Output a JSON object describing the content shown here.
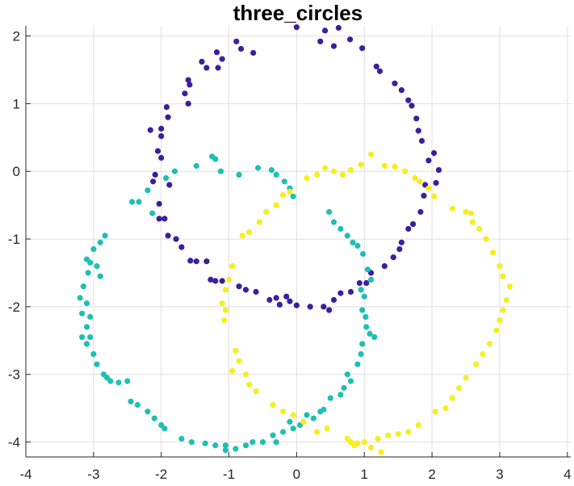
{
  "chart_data": {
    "type": "scatter",
    "title": "three_circles",
    "xlabel": "",
    "ylabel": "",
    "xlim": [
      -4,
      4.05
    ],
    "ylim": [
      -4.22,
      2.15
    ],
    "grid": true,
    "x_ticks": [
      -4,
      -3,
      -2,
      -1,
      0,
      1,
      2,
      3,
      4
    ],
    "y_ticks": [
      2,
      1,
      0,
      -1,
      -2,
      -3,
      -4
    ],
    "x_tick_labels": [
      "-4",
      "-3",
      "-2",
      "-1",
      "0",
      "1",
      "2",
      "3",
      "4"
    ],
    "y_tick_labels": [
      "2",
      "1",
      "0",
      "-1",
      "-2",
      "-3",
      "-4"
    ],
    "series": [
      {
        "color": "#3a1f9e",
        "circle": {
          "center": [
            0.1,
            0.05
          ],
          "radius": 2.0
        },
        "points": [
          [
            0.0,
            2.13
          ],
          [
            0.62,
            2.12
          ],
          [
            0.42,
            2.08
          ],
          [
            -0.89,
            1.92
          ],
          [
            -0.82,
            1.81
          ],
          [
            0.79,
            1.95
          ],
          [
            0.35,
            1.92
          ],
          [
            0.55,
            1.85
          ],
          [
            0.97,
            1.82
          ],
          [
            -0.64,
            1.75
          ],
          [
            -1.18,
            1.76
          ],
          [
            -1.1,
            1.66
          ],
          [
            -1.4,
            1.62
          ],
          [
            -1.33,
            1.53
          ],
          [
            -1.16,
            1.53
          ],
          [
            1.18,
            1.55
          ],
          [
            1.23,
            1.48
          ],
          [
            -1.6,
            1.35
          ],
          [
            -1.58,
            1.28
          ],
          [
            -1.65,
            1.15
          ],
          [
            -1.6,
            1.0
          ],
          [
            1.45,
            1.3
          ],
          [
            1.55,
            1.2
          ],
          [
            1.65,
            1.05
          ],
          [
            1.7,
            0.97
          ],
          [
            1.77,
            0.78
          ],
          [
            -1.92,
            0.95
          ],
          [
            -1.9,
            0.8
          ],
          [
            -2.0,
            0.63
          ],
          [
            -2.16,
            0.61
          ],
          [
            -2.0,
            0.52
          ],
          [
            1.8,
            0.6
          ],
          [
            1.85,
            0.45
          ],
          [
            -2.05,
            0.3
          ],
          [
            -2.0,
            0.2
          ],
          [
            2.03,
            0.27
          ],
          [
            1.95,
            0.16
          ],
          [
            2.1,
            0.02
          ],
          [
            -2.09,
            -0.05
          ],
          [
            -2.12,
            -0.15
          ],
          [
            -1.88,
            -0.2
          ],
          [
            2.06,
            -0.17
          ],
          [
            1.9,
            -0.2
          ],
          [
            1.88,
            -0.36
          ],
          [
            -2.03,
            -0.48
          ],
          [
            -2.03,
            -0.7
          ],
          [
            -1.95,
            -0.7
          ],
          [
            1.83,
            -0.6
          ],
          [
            1.72,
            -0.78
          ],
          [
            1.65,
            -0.85
          ],
          [
            -1.9,
            -0.95
          ],
          [
            -1.78,
            -1.0
          ],
          [
            -1.7,
            -1.12
          ],
          [
            1.55,
            -1.05
          ],
          [
            1.52,
            -1.15
          ],
          [
            1.43,
            -1.27
          ],
          [
            -1.57,
            -1.32
          ],
          [
            -1.48,
            -1.33
          ],
          [
            -1.33,
            -1.33
          ],
          [
            1.3,
            -1.4
          ],
          [
            1.1,
            -1.5
          ],
          [
            1.03,
            -1.65
          ],
          [
            -1.27,
            -1.6
          ],
          [
            -1.2,
            -1.62
          ],
          [
            -1.1,
            -1.62
          ],
          [
            0.8,
            -1.78
          ],
          [
            0.93,
            -1.65
          ],
          [
            -0.75,
            -1.75
          ],
          [
            -0.85,
            -1.7
          ],
          [
            0.65,
            -1.8
          ],
          [
            -0.6,
            -1.78
          ],
          [
            -0.4,
            -1.9
          ],
          [
            -0.3,
            -1.87
          ],
          [
            -0.15,
            -1.85
          ],
          [
            0.0,
            -1.98
          ],
          [
            0.2,
            -2.0
          ],
          [
            0.4,
            -2.0
          ],
          [
            0.55,
            -1.9
          ],
          [
            0.48,
            -2.05
          ],
          [
            -0.25,
            -1.97
          ],
          [
            -0.1,
            -1.92
          ]
        ]
      },
      {
        "color": "#1ebfb5",
        "circle": {
          "center": [
            -1.0,
            -2.05
          ],
          "radius": 2.05
        },
        "points": [
          [
            -1.25,
            0.22
          ],
          [
            -1.2,
            0.18
          ],
          [
            -1.12,
            0.0
          ],
          [
            -0.85,
            -0.05
          ],
          [
            -0.57,
            0.05
          ],
          [
            -0.37,
            0.02
          ],
          [
            -0.3,
            -0.05
          ],
          [
            -0.18,
            -0.15
          ],
          [
            -0.1,
            -0.25
          ],
          [
            -0.05,
            -0.37
          ],
          [
            -1.48,
            0.08
          ],
          [
            -1.8,
            0.0
          ],
          [
            -1.93,
            -0.1
          ],
          [
            -2.2,
            -0.28
          ],
          [
            -2.33,
            -0.45
          ],
          [
            -2.43,
            -0.45
          ],
          [
            -2.13,
            -0.62
          ],
          [
            0.48,
            -0.6
          ],
          [
            0.55,
            -0.75
          ],
          [
            0.65,
            -0.85
          ],
          [
            0.75,
            -0.95
          ],
          [
            0.83,
            -1.05
          ],
          [
            0.9,
            -1.1
          ],
          [
            0.98,
            -1.22
          ],
          [
            -2.83,
            -0.95
          ],
          [
            -2.9,
            -1.05
          ],
          [
            -3.0,
            -1.15
          ],
          [
            -3.1,
            -1.3
          ],
          [
            -3.05,
            -1.35
          ],
          [
            -2.95,
            -1.4
          ],
          [
            -3.08,
            -1.5
          ],
          [
            -2.9,
            -1.55
          ],
          [
            -3.15,
            -1.7
          ],
          [
            -3.2,
            -1.87
          ],
          [
            -3.1,
            -1.95
          ],
          [
            -3.17,
            -2.1
          ],
          [
            -3.05,
            -2.15
          ],
          [
            -3.1,
            -2.3
          ],
          [
            -3.17,
            -2.45
          ],
          [
            -3.05,
            -2.45
          ],
          [
            1.05,
            -1.45
          ],
          [
            1.1,
            -1.6
          ],
          [
            0.95,
            -1.75
          ],
          [
            1.0,
            -1.85
          ],
          [
            0.97,
            -2.05
          ],
          [
            1.02,
            -2.15
          ],
          [
            1.03,
            -2.3
          ],
          [
            1.08,
            -2.4
          ],
          [
            1.15,
            -2.45
          ],
          [
            0.97,
            -2.55
          ],
          [
            -3.1,
            -2.55
          ],
          [
            -3.0,
            -2.7
          ],
          [
            -2.95,
            -2.85
          ],
          [
            -2.85,
            -3.0
          ],
          [
            -2.8,
            -3.05
          ],
          [
            -2.75,
            -3.1
          ],
          [
            -2.63,
            -3.12
          ],
          [
            -2.5,
            -3.1
          ],
          [
            0.95,
            -2.7
          ],
          [
            0.9,
            -2.85
          ],
          [
            0.75,
            -3.0
          ],
          [
            0.8,
            -3.1
          ],
          [
            0.7,
            -3.2
          ],
          [
            0.65,
            -3.3
          ],
          [
            0.5,
            -3.35
          ],
          [
            0.4,
            -3.52
          ],
          [
            -2.45,
            -3.4
          ],
          [
            -2.35,
            -3.45
          ],
          [
            -2.2,
            -3.55
          ],
          [
            -2.1,
            -3.65
          ],
          [
            -2.0,
            -3.75
          ],
          [
            -1.95,
            -3.8
          ],
          [
            0.35,
            -3.55
          ],
          [
            0.25,
            -3.65
          ],
          [
            0.1,
            -3.7
          ],
          [
            0.15,
            -3.6
          ],
          [
            -0.1,
            -3.7
          ],
          [
            -0.05,
            -3.8
          ],
          [
            -0.2,
            -3.85
          ],
          [
            -0.35,
            -3.9
          ],
          [
            -0.5,
            -4.0
          ],
          [
            -1.7,
            -3.95
          ],
          [
            -1.55,
            -4.0
          ],
          [
            -1.35,
            -4.02
          ],
          [
            -1.2,
            -4.05
          ],
          [
            -1.05,
            -4.05
          ],
          [
            -0.9,
            -4.1
          ],
          [
            -0.75,
            -4.05
          ],
          [
            -0.65,
            -4.0
          ],
          [
            -1.05,
            -4.12
          ],
          [
            0.05,
            -3.75
          ],
          [
            -0.3,
            -4.0
          ]
        ]
      },
      {
        "color": "#f6ee20",
        "circle": {
          "center": [
            1.05,
            -2.0
          ],
          "radius": 2.05
        },
        "points": [
          [
            0.15,
            -0.1
          ],
          [
            0.3,
            -0.05
          ],
          [
            0.42,
            0.05
          ],
          [
            0.55,
            0.0
          ],
          [
            0.68,
            -0.05
          ],
          [
            0.8,
            0.02
          ],
          [
            0.95,
            0.1
          ],
          [
            1.1,
            0.25
          ],
          [
            1.3,
            0.08
          ],
          [
            1.45,
            0.07
          ],
          [
            1.6,
            0.0
          ],
          [
            1.75,
            -0.1
          ],
          [
            1.82,
            -0.15
          ],
          [
            1.95,
            -0.25
          ],
          [
            2.03,
            -0.37
          ],
          [
            -0.1,
            -0.3
          ],
          [
            -0.2,
            -0.35
          ],
          [
            -0.3,
            -0.5
          ],
          [
            -0.45,
            -0.6
          ],
          [
            -0.55,
            -0.75
          ],
          [
            -0.7,
            -0.9
          ],
          [
            -0.8,
            -0.95
          ],
          [
            2.3,
            -0.55
          ],
          [
            2.5,
            -0.6
          ],
          [
            2.6,
            -0.75
          ],
          [
            2.7,
            -0.85
          ],
          [
            2.8,
            -1.0
          ],
          [
            2.9,
            -1.2
          ],
          [
            3.0,
            -1.4
          ],
          [
            3.05,
            -1.55
          ],
          [
            3.15,
            -1.7
          ],
          [
            -0.95,
            -1.4
          ],
          [
            -1.0,
            -1.6
          ],
          [
            -1.05,
            -1.75
          ],
          [
            -1.1,
            -1.95
          ],
          [
            -1.05,
            -2.05
          ],
          [
            -1.07,
            -2.2
          ],
          [
            3.1,
            -1.9
          ],
          [
            3.05,
            -2.05
          ],
          [
            3.0,
            -2.2
          ],
          [
            2.95,
            -2.35
          ],
          [
            2.85,
            -2.55
          ],
          [
            2.75,
            -2.7
          ],
          [
            2.65,
            -2.85
          ],
          [
            -0.9,
            -2.65
          ],
          [
            -0.85,
            -2.8
          ],
          [
            -0.95,
            -2.95
          ],
          [
            -0.75,
            -3.0
          ],
          [
            -0.7,
            -3.15
          ],
          [
            -0.6,
            -3.25
          ],
          [
            2.5,
            -3.05
          ],
          [
            2.4,
            -3.2
          ],
          [
            2.3,
            -3.35
          ],
          [
            2.2,
            -3.5
          ],
          [
            2.05,
            -3.55
          ],
          [
            -0.35,
            -3.45
          ],
          [
            -0.2,
            -3.55
          ],
          [
            -0.05,
            -3.6
          ],
          [
            0.1,
            -3.7
          ],
          [
            0.3,
            -3.85
          ],
          [
            0.45,
            -3.8
          ],
          [
            1.8,
            -3.75
          ],
          [
            1.65,
            -3.85
          ],
          [
            1.5,
            -3.88
          ],
          [
            1.35,
            -3.9
          ],
          [
            1.2,
            -3.95
          ],
          [
            0.75,
            -3.95
          ],
          [
            0.85,
            -4.05
          ],
          [
            1.0,
            -4.0
          ],
          [
            1.1,
            -4.08
          ],
          [
            1.25,
            -4.15
          ],
          [
            0.8,
            -4.0
          ],
          [
            2.58,
            -0.62
          ],
          [
            0.9,
            -4.02
          ]
        ]
      }
    ]
  }
}
